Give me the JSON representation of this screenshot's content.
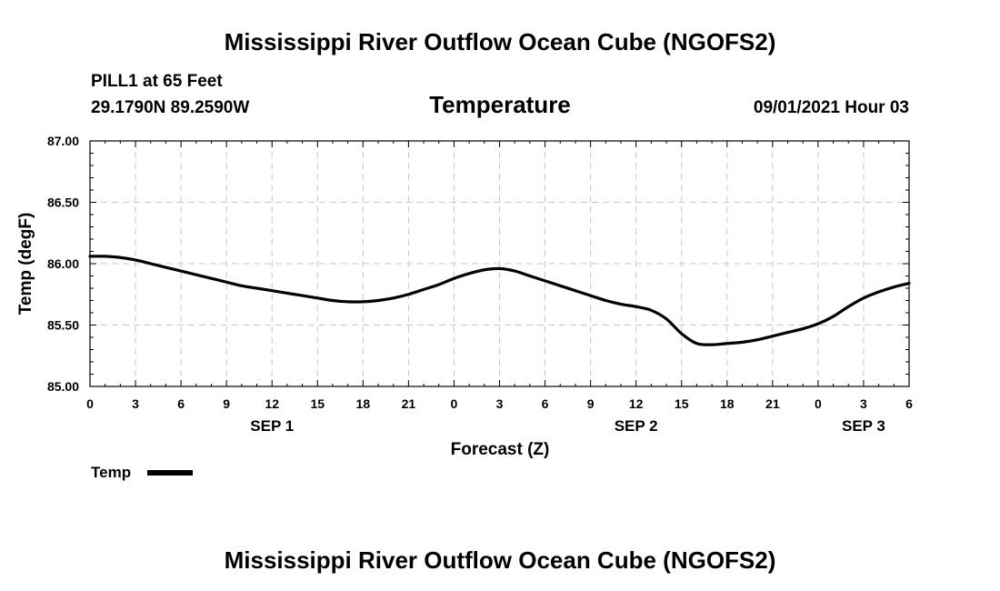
{
  "header": {
    "title": "Mississippi River Outflow Ocean Cube (NGOFS2)",
    "station": "PILL1 at 65 Feet",
    "coords": "29.1790N  89.2590W",
    "datetime": "09/01/2021 Hour 03"
  },
  "footer": {
    "title": "Mississippi River Outflow Ocean Cube (NGOFS2)"
  },
  "chart_data": {
    "type": "line",
    "title": "Temperature",
    "xlabel": "Forecast (Z)",
    "ylabel": "Temp (degF)",
    "xlim": [
      0,
      54
    ],
    "ylim": [
      85.0,
      87.0
    ],
    "y_ticks": [
      "85.00",
      "85.50",
      "86.00",
      "86.50",
      "87.00"
    ],
    "x_tick_hours": [
      0,
      3,
      6,
      9,
      12,
      15,
      18,
      21,
      24,
      27,
      30,
      33,
      36,
      39,
      42,
      45,
      48,
      51,
      54
    ],
    "x_tick_labels": [
      "0",
      "3",
      "6",
      "9",
      "12",
      "15",
      "18",
      "21",
      "0",
      "3",
      "6",
      "9",
      "12",
      "15",
      "18",
      "21",
      "0",
      "3",
      "6"
    ],
    "date_labels": [
      {
        "hour": 12,
        "label": "SEP 1"
      },
      {
        "hour": 36,
        "label": "SEP 2"
      },
      {
        "hour": 51,
        "label": "SEP 3"
      }
    ],
    "grid": true,
    "legend": "bottom-left",
    "series": [
      {
        "name": "Temp",
        "color": "#000000",
        "x": [
          0,
          1,
          2,
          3,
          4,
          5,
          6,
          7,
          8,
          9,
          10,
          11,
          12,
          13,
          14,
          15,
          16,
          17,
          18,
          19,
          20,
          21,
          22,
          23,
          24,
          25,
          26,
          27,
          28,
          29,
          30,
          31,
          32,
          33,
          34,
          35,
          36,
          37,
          38,
          39,
          40,
          41,
          42,
          43,
          44,
          45,
          46,
          47,
          48,
          49,
          50,
          51,
          52,
          53,
          54
        ],
        "values": [
          86.06,
          86.06,
          86.05,
          86.03,
          86.0,
          85.97,
          85.94,
          85.91,
          85.88,
          85.85,
          85.82,
          85.8,
          85.78,
          85.76,
          85.74,
          85.72,
          85.7,
          85.69,
          85.69,
          85.7,
          85.72,
          85.75,
          85.79,
          85.83,
          85.88,
          85.92,
          85.95,
          85.96,
          85.94,
          85.9,
          85.86,
          85.82,
          85.78,
          85.74,
          85.7,
          85.67,
          85.65,
          85.62,
          85.55,
          85.43,
          85.35,
          85.34,
          85.35,
          85.36,
          85.38,
          85.41,
          85.44,
          85.47,
          85.51,
          85.57,
          85.65,
          85.72,
          85.77,
          85.81,
          85.84
        ]
      }
    ]
  }
}
